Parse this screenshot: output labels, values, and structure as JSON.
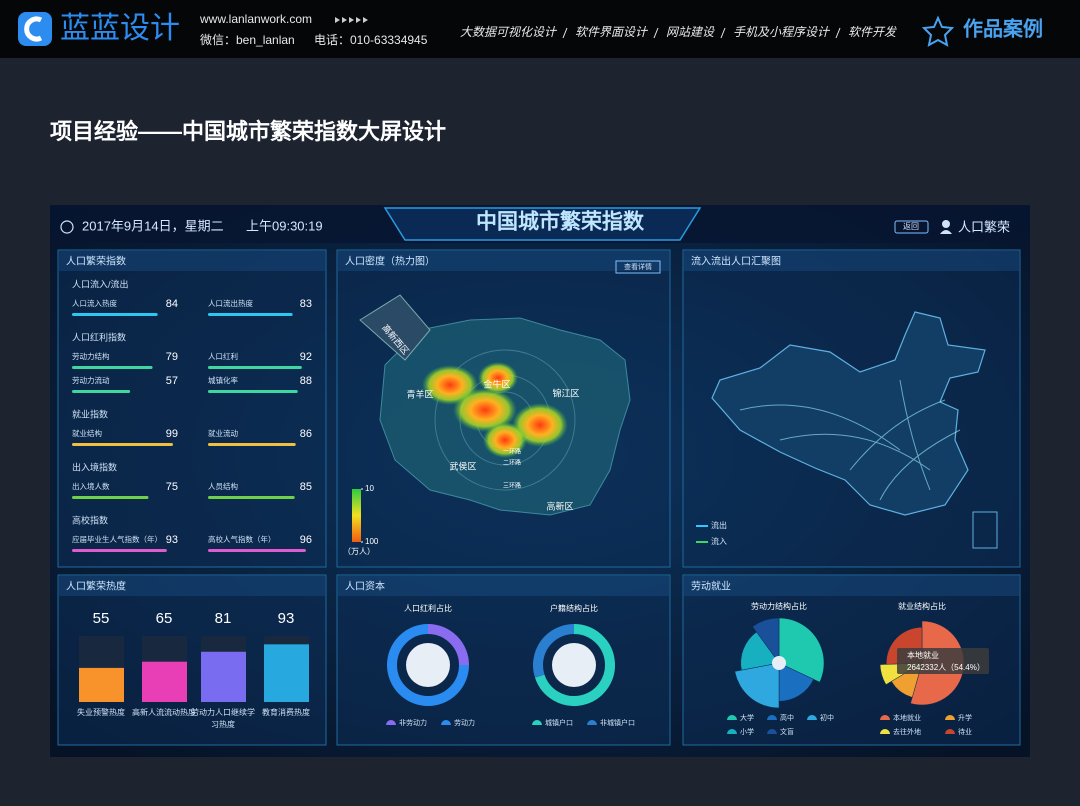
{
  "header": {
    "logo": "蓝蓝设计",
    "website": "www.lanlanwork.com",
    "wechat": "微信：ben_lanlan",
    "phone": "电话：010-63334945",
    "nav": [
      "大数据可视化设计",
      "软件界面设计",
      "网站建设",
      "手机及小程序设计",
      "软件开发"
    ],
    "badge": "作品案例"
  },
  "page_title": "项目经验——中国城市繁荣指数大屏设计",
  "dashboard": {
    "date": "2017年9月14日，星期二",
    "time": "上午09:30:19",
    "title": "中国城市繁荣指数",
    "back_button": "返回",
    "module": "人口繁荣",
    "prosperity_index": {
      "title": "人口繁荣指数",
      "groups": [
        {
          "name": "人口流入/流出",
          "color": "#2ec7f0",
          "items": [
            {
              "label": "人口流入热度",
              "value": 84
            },
            {
              "label": "人口流出热度",
              "value": 83
            }
          ]
        },
        {
          "name": "人口红利指数",
          "color": "#3fd6a0",
          "items": [
            {
              "label": "劳动力结构",
              "value": 79
            },
            {
              "label": "人口红利",
              "value": 92
            },
            {
              "label": "劳动力流动",
              "value": 57
            },
            {
              "label": "城镇化率",
              "value": 88
            }
          ]
        },
        {
          "name": "就业指数",
          "color": "#f0c040",
          "items": [
            {
              "label": "就业结构",
              "value": 99
            },
            {
              "label": "就业流动",
              "value": 86
            }
          ]
        },
        {
          "name": "出入境指数",
          "color": "#6fd04a",
          "items": [
            {
              "label": "出入境人数",
              "value": 75
            },
            {
              "label": "人员结构",
              "value": 85
            }
          ]
        },
        {
          "name": "高校指数",
          "color": "#e05ad0",
          "items": [
            {
              "label": "应届毕业生人气指数（年）",
              "value": 93
            },
            {
              "label": "高校人气指数（年）",
              "value": 96
            }
          ]
        }
      ]
    },
    "density_map": {
      "title": "人口密度（热力图）",
      "detail_button": "查看详情",
      "districts": [
        "高新西区",
        "金牛区",
        "青羊区",
        "锦江区",
        "武侯区",
        "高新区"
      ],
      "ring_roads": [
        "一环路",
        "二环路",
        "三环路"
      ],
      "legend_ticks": [
        10,
        100
      ],
      "legend_unit": "（万人）"
    },
    "migration_map": {
      "title": "流入流出人口汇聚图",
      "legend": [
        {
          "name": "流出",
          "color": "#33c6ff"
        },
        {
          "name": "流入",
          "color": "#3fd36a"
        }
      ]
    },
    "prosperity_heat": {
      "title": "人口繁荣热度",
      "items": [
        {
          "label": "失业预警热度",
          "value": 55,
          "color": "#f7932a"
        },
        {
          "label": "高新人流流动热度",
          "value": 65,
          "color": "#e83fb6"
        },
        {
          "label": "劳动力人口继续学习热度",
          "value": 81,
          "color": "#7a6cf0"
        },
        {
          "label": "教育消费热度",
          "value": 93,
          "color": "#27a9e0"
        }
      ]
    },
    "capital": {
      "title": "人口资本",
      "charts": [
        {
          "title": "人口红利占比",
          "series": [
            {
              "name": "非劳动力",
              "value": 25,
              "color": "#8a6cf0"
            },
            {
              "name": "劳动力",
              "value": 75,
              "color": "#2a8cf0"
            }
          ]
        },
        {
          "title": "户籍结构占比",
          "series": [
            {
              "name": "城镇户口",
              "value": 70,
              "color": "#2ad0c0"
            },
            {
              "name": "非城镇户口",
              "value": 30,
              "color": "#2a7fd0"
            }
          ]
        }
      ]
    },
    "employment": {
      "title": "劳动就业",
      "charts": [
        {
          "title": "劳动力结构占比",
          "series": [
            {
              "name": "大学",
              "value": 32,
              "color": "#1fc9b0"
            },
            {
              "name": "高中",
              "value": 18,
              "color": "#1a6fc0"
            },
            {
              "name": "初中",
              "value": 22,
              "color": "#2fa8e0"
            },
            {
              "name": "小学",
              "value": 18,
              "color": "#17b0c0"
            },
            {
              "name": "文盲",
              "value": 10,
              "color": "#1a4f9a"
            }
          ]
        },
        {
          "title": "就业结构占比",
          "series": [
            {
              "name": "本地就业",
              "value": 54.4,
              "color": "#e8684a"
            },
            {
              "name": "升学",
              "value": 12,
              "color": "#f0a030"
            },
            {
              "name": "去往外地",
              "value": 8,
              "color": "#f0e040"
            },
            {
              "name": "待业",
              "value": 25.6,
              "color": "#c9452e"
            }
          ]
        }
      ],
      "tooltip": {
        "name": "本地就业",
        "text": "2642332人（54.4%）"
      }
    }
  }
}
